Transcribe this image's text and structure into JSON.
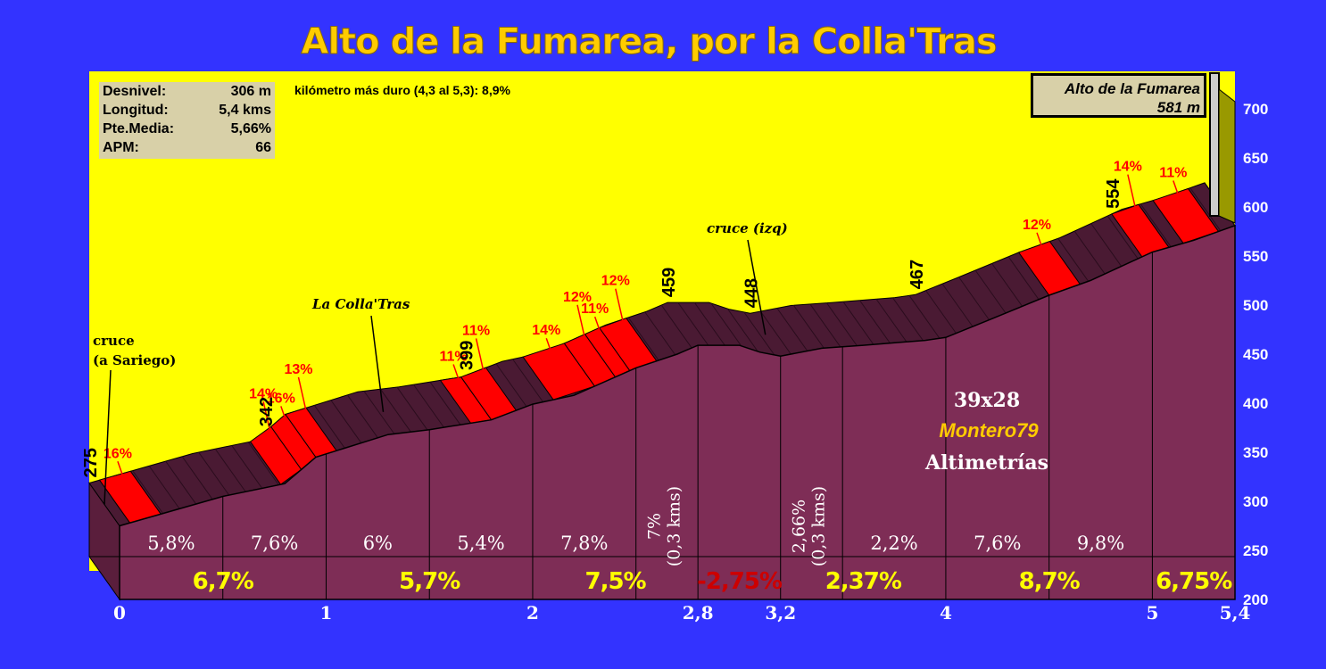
{
  "title": "Alto de la Fumarea, por la Colla'Tras",
  "stats": [
    {
      "label": "Desnivel:",
      "value": "306 m"
    },
    {
      "label": "Longitud:",
      "value": "5,4 kms"
    },
    {
      "label": "Pte.Media:",
      "value": "5,66%"
    },
    {
      "label": "APM:",
      "value": "66"
    }
  ],
  "hardest_km": "kilómetro más duro (4,3 al 5,3):  8,9%",
  "summit": {
    "name": "Alto de la Fumarea",
    "alt": "581 m"
  },
  "credits": {
    "gear": "39x28",
    "author": "Montero79",
    "site": "Altimetrías"
  },
  "colors": {
    "background": "#3333ff",
    "sky": "#ffff00",
    "profile": "#7e2d56",
    "steep": "#ff0000",
    "title": "#ffcc00"
  },
  "chart_data": {
    "type": "area",
    "xlabel": "",
    "ylabel": "",
    "xlim": [
      0,
      5.4
    ],
    "ylim": [
      200,
      700
    ],
    "x_ticks": [
      "0",
      "1",
      "2",
      "2,8",
      "3,2",
      "4",
      "5",
      "5,4"
    ],
    "x_tick_values": [
      0,
      1,
      2,
      2.8,
      3.2,
      4,
      5,
      5.4
    ],
    "y_ticks": [
      200,
      250,
      300,
      350,
      400,
      450,
      500,
      550,
      600,
      650,
      700
    ],
    "profile": {
      "x": [
        0,
        0.5,
        0.8,
        0.95,
        1.3,
        1.5,
        1.8,
        2.0,
        2.2,
        2.5,
        2.7,
        2.8,
        3.0,
        3.1,
        3.2,
        3.4,
        3.6,
        3.9,
        4.0,
        4.2,
        4.5,
        4.7,
        5.0,
        5.2,
        5.4
      ],
      "y": [
        275,
        305,
        318,
        345,
        368,
        373,
        383,
        399,
        408,
        436,
        450,
        459,
        459,
        452,
        448,
        456,
        459,
        464,
        467,
        484,
        510,
        525,
        554,
        566,
        581
      ]
    },
    "segments": [
      {
        "from": 0,
        "to": 0.5,
        "label": "5,8%"
      },
      {
        "from": 0.5,
        "to": 1,
        "label": "7,6%"
      },
      {
        "from": 1,
        "to": 1.5,
        "label": "6%"
      },
      {
        "from": 1.5,
        "to": 2,
        "label": "5,4%"
      },
      {
        "from": 2,
        "to": 2.5,
        "label": "7,8%"
      },
      {
        "from": 2.5,
        "to": 2.8,
        "label": "7%\n(0,3 kms)"
      },
      {
        "from": 3.2,
        "to": 3.5,
        "label": "2,66%\n(0,3 kms)"
      },
      {
        "from": 3.5,
        "to": 4,
        "label": "2,2%"
      },
      {
        "from": 4,
        "to": 4.5,
        "label": "7,6%"
      },
      {
        "from": 4.5,
        "to": 5,
        "label": "9,8%"
      }
    ],
    "km_averages": [
      {
        "from": 0,
        "to": 1,
        "label": "6,7%"
      },
      {
        "from": 1,
        "to": 2,
        "label": "5,7%"
      },
      {
        "from": 2,
        "to": 2.8,
        "label": "7,5%"
      },
      {
        "from": 2.8,
        "to": 3.2,
        "label": "-2,75%"
      },
      {
        "from": 3.2,
        "to": 4,
        "label": "2,37%"
      },
      {
        "from": 4,
        "to": 5,
        "label": "8,7%"
      },
      {
        "from": 5,
        "to": 5.4,
        "label": "6,75%"
      }
    ],
    "steep_sections": [
      {
        "from": 0.05,
        "to": 0.2,
        "label": "16%"
      },
      {
        "from": 0.78,
        "to": 0.88,
        "label": "14%"
      },
      {
        "from": 0.88,
        "to": 0.95,
        "label": "16%"
      },
      {
        "from": 0.95,
        "to": 1.05,
        "label": "13%"
      },
      {
        "from": 1.7,
        "to": 1.8,
        "label": "11%"
      },
      {
        "from": 1.8,
        "to": 1.92,
        "label": "11%"
      },
      {
        "from": 2.1,
        "to": 2.3,
        "label": "14%"
      },
      {
        "from": 2.3,
        "to": 2.4,
        "label": "12%"
      },
      {
        "from": 2.4,
        "to": 2.47,
        "label": "11%"
      },
      {
        "from": 2.47,
        "to": 2.6,
        "label": "12%"
      },
      {
        "from": 4.5,
        "to": 4.65,
        "label": "12%"
      },
      {
        "from": 4.95,
        "to": 5.08,
        "label": "14%"
      },
      {
        "from": 5.15,
        "to": 5.32,
        "label": "11%"
      }
    ],
    "spot_heights": [
      {
        "x": 0,
        "label": "275"
      },
      {
        "x": 0.85,
        "label": "342"
      },
      {
        "x": 1.82,
        "label": "399"
      },
      {
        "x": 2.8,
        "label": "459"
      },
      {
        "x": 3.2,
        "label": "448"
      },
      {
        "x": 4.0,
        "label": "467"
      },
      {
        "x": 4.95,
        "label": "554"
      }
    ],
    "annotations": [
      {
        "x": 0.0,
        "text": "cruce\n(a Sariego)"
      },
      {
        "x": 1.35,
        "text": "La Colla'Tras"
      },
      {
        "x": 3.2,
        "text": "cruce (izq)"
      }
    ]
  }
}
